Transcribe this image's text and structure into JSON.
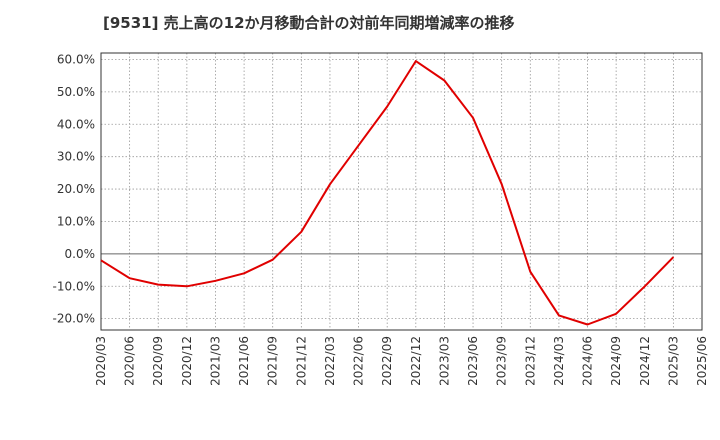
{
  "chart_data": {
    "type": "line",
    "title": "[9531]  売上高の12か月移動合計の対前年同期増減率の推移",
    "xlabel": "",
    "ylabel": "",
    "x_ticks": [
      "2020/03",
      "2020/06",
      "2020/09",
      "2020/12",
      "2021/03",
      "2021/06",
      "2021/09",
      "2021/12",
      "2022/03",
      "2022/06",
      "2022/09",
      "2022/12",
      "2023/03",
      "2023/06",
      "2023/09",
      "2023/12",
      "2024/03",
      "2024/06",
      "2024/09",
      "2024/12",
      "2025/03",
      "2025/06"
    ],
    "y_ticks": [
      "60.0%",
      "50.0%",
      "40.0%",
      "30.0%",
      "20.0%",
      "10.0%",
      "0.0%",
      "-10.0%",
      "-20.0%"
    ],
    "y_tick_values": [
      60,
      50,
      40,
      30,
      20,
      10,
      0,
      -10,
      -20
    ],
    "ylim": [
      -23.5,
      62
    ],
    "grid": true,
    "series": [
      {
        "color": "#e00000",
        "x": [
          "2020/03",
          "2020/06",
          "2020/09",
          "2020/12",
          "2021/03",
          "2021/06",
          "2021/09",
          "2021/12",
          "2022/03",
          "2022/06",
          "2022/09",
          "2022/12",
          "2023/03",
          "2023/06",
          "2023/09",
          "2023/12",
          "2024/03",
          "2024/06",
          "2024/09",
          "2024/12",
          "2025/03"
        ],
        "values": [
          -2.0,
          -7.5,
          -9.5,
          -10.0,
          -8.3,
          -6.0,
          -1.8,
          6.8,
          21.5,
          33.5,
          45.5,
          59.5,
          53.5,
          42.0,
          21.5,
          -5.5,
          -19.0,
          -21.8,
          -18.5,
          -10.0,
          -1.0
        ]
      }
    ]
  }
}
